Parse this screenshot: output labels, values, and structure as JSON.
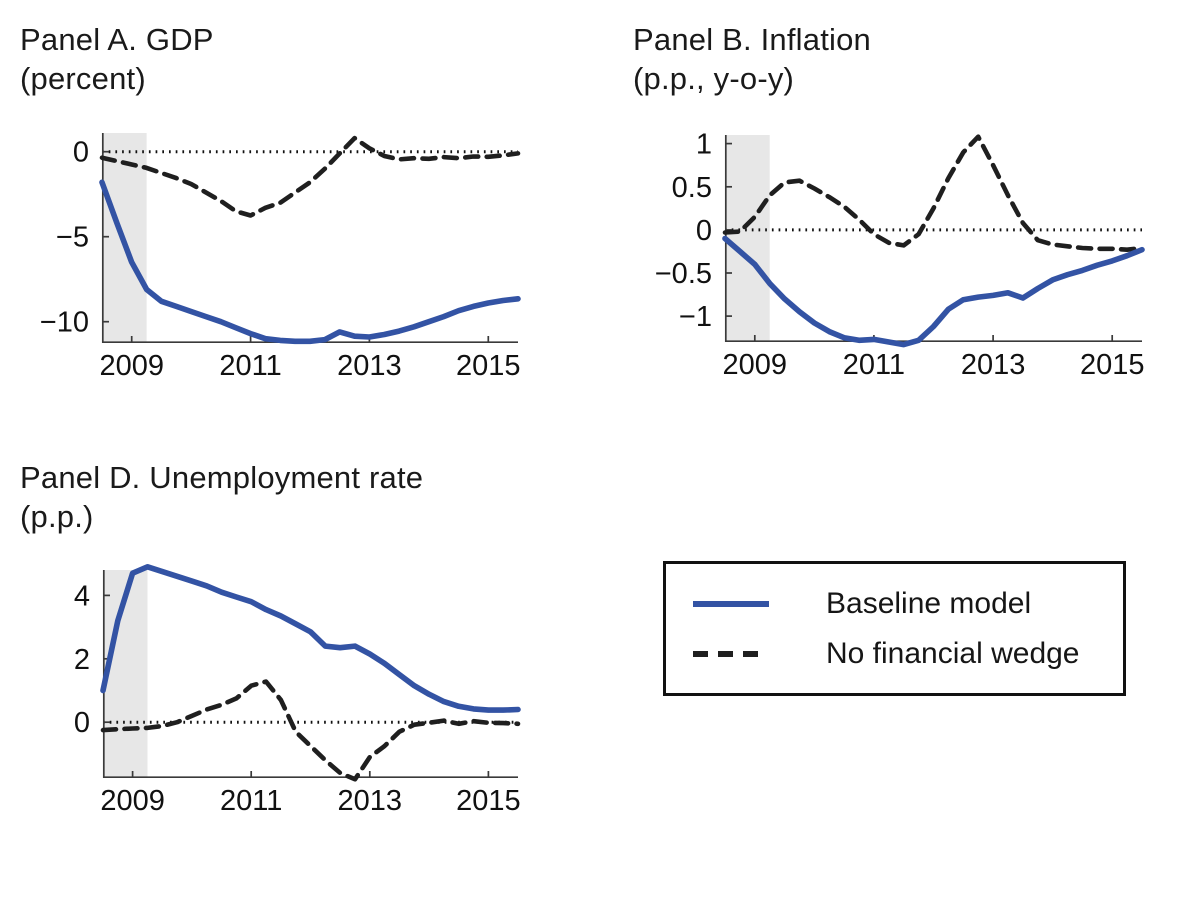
{
  "figure": {
    "background": "#ffffff"
  },
  "colors": {
    "baseline_line": "#3353a4",
    "counterfactual_line": "#1f1f1f",
    "recession_band": "#e7e7e7",
    "zero_line": "#111111",
    "axis": "#3a3a3a",
    "text": "#111111"
  },
  "legend": {
    "items": [
      {
        "label": "Baseline model",
        "style": "solid",
        "color": "#3353a4"
      },
      {
        "label": "No financial wedge",
        "style": "dashed",
        "color": "#1f1f1f"
      }
    ]
  },
  "chart_data": [
    {
      "id": "panel-a",
      "type": "line",
      "title": "Panel A. GDP",
      "subtitle": "(percent)",
      "xlim": [
        2008.5,
        2015.5
      ],
      "ylim": [
        -11.25,
        1.1
      ],
      "grid": false,
      "zero_line": true,
      "shaded_span": [
        2008.5,
        2009.25
      ],
      "xticks": [
        {
          "v": 2009,
          "label": "2009"
        },
        {
          "v": 2011,
          "label": "2011"
        },
        {
          "v": 2013,
          "label": "2013"
        },
        {
          "v": 2015,
          "label": "2015"
        }
      ],
      "yticks": [
        {
          "v": 0,
          "label": "0"
        },
        {
          "v": -5,
          "label": "−5"
        },
        {
          "v": -10,
          "label": "−10"
        }
      ],
      "x": [
        2008.5,
        2008.75,
        2009,
        2009.25,
        2009.5,
        2009.75,
        2010,
        2010.25,
        2010.5,
        2010.75,
        2011,
        2011.25,
        2011.5,
        2011.75,
        2012,
        2012.25,
        2012.5,
        2012.75,
        2013,
        2013.25,
        2013.5,
        2013.75,
        2014,
        2014.25,
        2014.5,
        2014.75,
        2015,
        2015.25,
        2015.5
      ],
      "series": [
        {
          "name": "Baseline model",
          "style": "solid",
          "color": "#3353a4",
          "values": [
            -1.8,
            -4.2,
            -6.5,
            -8.1,
            -8.8,
            -9.1,
            -9.4,
            -9.7,
            -10.0,
            -10.35,
            -10.7,
            -11.0,
            -11.1,
            -11.15,
            -11.15,
            -11.05,
            -10.6,
            -10.85,
            -10.9,
            -10.75,
            -10.55,
            -10.3,
            -10.0,
            -9.7,
            -9.35,
            -9.1,
            -8.9,
            -8.75,
            -8.65
          ]
        },
        {
          "name": "No financial wedge",
          "style": "dashed",
          "color": "#1f1f1f",
          "values": [
            -0.35,
            -0.55,
            -0.75,
            -0.95,
            -1.25,
            -1.55,
            -1.9,
            -2.4,
            -2.9,
            -3.5,
            -3.75,
            -3.3,
            -3.0,
            -2.4,
            -1.8,
            -1.0,
            -0.1,
            0.8,
            0.2,
            -0.25,
            -0.45,
            -0.38,
            -0.42,
            -0.32,
            -0.38,
            -0.28,
            -0.3,
            -0.22,
            -0.1
          ]
        }
      ]
    },
    {
      "id": "panel-b",
      "type": "line",
      "title": "Panel B. Inflation",
      "subtitle": "(p.p., y-o-y)",
      "xlim": [
        2008.5,
        2015.5
      ],
      "ylim": [
        -1.3,
        1.1
      ],
      "grid": false,
      "zero_line": true,
      "shaded_span": [
        2008.5,
        2009.25
      ],
      "xticks": [
        {
          "v": 2009,
          "label": "2009"
        },
        {
          "v": 2011,
          "label": "2011"
        },
        {
          "v": 2013,
          "label": "2013"
        },
        {
          "v": 2015,
          "label": "2015"
        }
      ],
      "yticks": [
        {
          "v": 1,
          "label": "1"
        },
        {
          "v": 0.5,
          "label": "0.5"
        },
        {
          "v": 0,
          "label": "0"
        },
        {
          "v": -0.5,
          "label": "−0.5"
        },
        {
          "v": -1,
          "label": "−1"
        }
      ],
      "x": [
        2008.5,
        2008.75,
        2009,
        2009.25,
        2009.5,
        2009.75,
        2010,
        2010.25,
        2010.5,
        2010.75,
        2011,
        2011.25,
        2011.5,
        2011.75,
        2012,
        2012.25,
        2012.5,
        2012.75,
        2013,
        2013.25,
        2013.5,
        2013.75,
        2014,
        2014.25,
        2014.5,
        2014.75,
        2015,
        2015.25,
        2015.5
      ],
      "series": [
        {
          "name": "Baseline model",
          "style": "solid",
          "color": "#3353a4",
          "values": [
            -0.1,
            -0.25,
            -0.4,
            -0.62,
            -0.8,
            -0.95,
            -1.08,
            -1.18,
            -1.25,
            -1.28,
            -1.27,
            -1.3,
            -1.33,
            -1.28,
            -1.12,
            -0.92,
            -0.81,
            -0.78,
            -0.76,
            -0.73,
            -0.79,
            -0.68,
            -0.58,
            -0.52,
            -0.47,
            -0.41,
            -0.36,
            -0.3,
            -0.23
          ]
        },
        {
          "name": "No financial wedge",
          "style": "dashed",
          "color": "#1f1f1f",
          "values": [
            -0.03,
            -0.02,
            0.15,
            0.4,
            0.55,
            0.57,
            0.48,
            0.38,
            0.27,
            0.12,
            -0.05,
            -0.15,
            -0.18,
            -0.05,
            0.25,
            0.6,
            0.9,
            1.08,
            0.75,
            0.4,
            0.08,
            -0.12,
            -0.17,
            -0.19,
            -0.21,
            -0.22,
            -0.22,
            -0.23,
            -0.21
          ]
        }
      ]
    },
    {
      "id": "panel-d",
      "type": "line",
      "title": "Panel D. Unemployment rate",
      "subtitle": "(p.p.)",
      "xlim": [
        2008.5,
        2015.5
      ],
      "ylim": [
        -1.76,
        4.8
      ],
      "grid": false,
      "zero_line": true,
      "shaded_span": [
        2008.5,
        2009.25
      ],
      "xticks": [
        {
          "v": 2009,
          "label": "2009"
        },
        {
          "v": 2011,
          "label": "2011"
        },
        {
          "v": 2013,
          "label": "2013"
        },
        {
          "v": 2015,
          "label": "2015"
        }
      ],
      "yticks": [
        {
          "v": 4,
          "label": "4"
        },
        {
          "v": 2,
          "label": "2"
        },
        {
          "v": 0,
          "label": "0"
        }
      ],
      "x": [
        2008.5,
        2008.75,
        2009,
        2009.25,
        2009.5,
        2009.75,
        2010,
        2010.25,
        2010.5,
        2010.75,
        2011,
        2011.25,
        2011.5,
        2011.75,
        2012,
        2012.25,
        2012.5,
        2012.75,
        2013,
        2013.25,
        2013.5,
        2013.75,
        2014,
        2014.25,
        2014.5,
        2014.75,
        2015,
        2015.25,
        2015.5
      ],
      "series": [
        {
          "name": "Baseline model",
          "style": "solid",
          "color": "#3353a4",
          "values": [
            1.0,
            3.2,
            4.7,
            4.9,
            4.75,
            4.6,
            4.45,
            4.3,
            4.1,
            3.95,
            3.8,
            3.55,
            3.35,
            3.1,
            2.85,
            2.4,
            2.35,
            2.4,
            2.15,
            1.85,
            1.5,
            1.15,
            0.88,
            0.65,
            0.5,
            0.42,
            0.38,
            0.38,
            0.4
          ]
        },
        {
          "name": "No financial wedge",
          "style": "dashed",
          "color": "#1f1f1f",
          "values": [
            -0.25,
            -0.22,
            -0.2,
            -0.18,
            -0.12,
            0.0,
            0.2,
            0.4,
            0.55,
            0.75,
            1.15,
            1.28,
            0.7,
            -0.3,
            -0.75,
            -1.2,
            -1.6,
            -1.8,
            -1.1,
            -0.75,
            -0.3,
            -0.08,
            -0.02,
            0.05,
            -0.05,
            0.03,
            -0.02,
            -0.03,
            -0.05
          ]
        }
      ]
    }
  ]
}
